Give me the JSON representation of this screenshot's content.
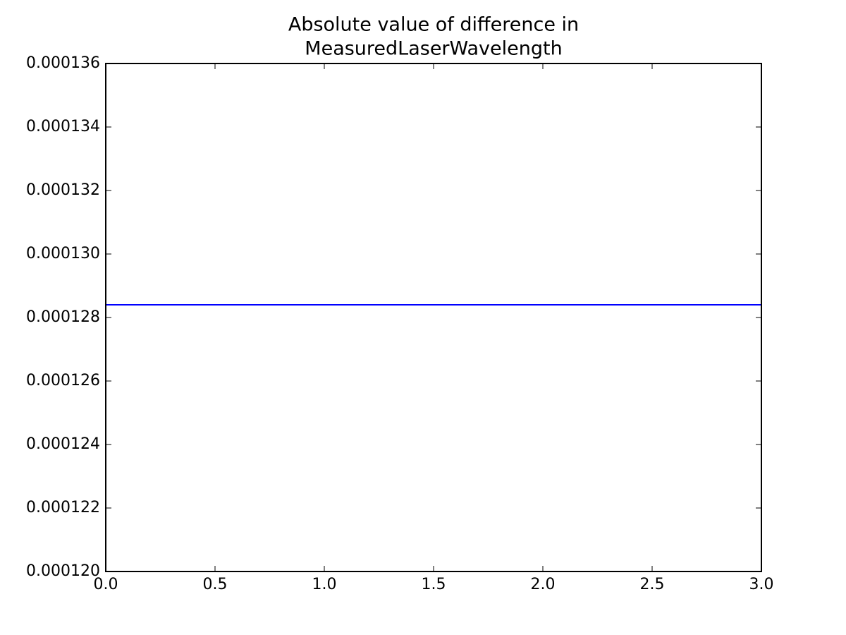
{
  "chart_data": {
    "type": "line",
    "title": [
      "Absolute value of difference in",
      "MeasuredLaserWavelength"
    ],
    "x": [
      0,
      1,
      2,
      3
    ],
    "series": [
      {
        "name": "MeasuredLaserWavelength",
        "color": "#0000ff",
        "values": [
          0.0001284,
          0.0001284,
          0.0001284,
          0.0001284
        ]
      }
    ],
    "xlim": [
      0,
      3
    ],
    "xticks": [
      {
        "value": 0,
        "label": "0.0"
      },
      0.5,
      {
        "value": 1,
        "label": "1.0"
      },
      1.5,
      {
        "value": 2,
        "label": "2.0"
      },
      2.5,
      {
        "value": 3,
        "label": "3.0"
      }
    ],
    "ylim": [
      0.00012,
      0.000136
    ],
    "yticks": [
      {
        "value": 0.00012,
        "label": "0.000120"
      },
      {
        "value": 0.000122,
        "label": "0.000122"
      },
      {
        "value": 0.000124,
        "label": "0.000124"
      },
      {
        "value": 0.000126,
        "label": "0.000126"
      },
      {
        "value": 0.000128,
        "label": "0.000128"
      },
      {
        "value": 0.00013,
        "label": "0.000130"
      },
      {
        "value": 0.000132,
        "label": "0.000132"
      },
      {
        "value": 0.000134,
        "label": "0.000134"
      },
      {
        "value": 0.000136,
        "label": "0.000136"
      }
    ],
    "grid": false
  }
}
